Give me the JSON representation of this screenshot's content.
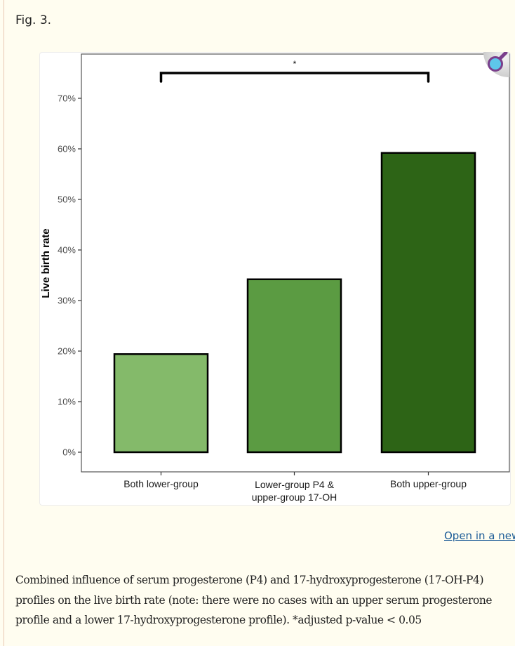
{
  "figure": {
    "label": "Fig. 3.",
    "open_link": "Open in a new",
    "caption": "Combined influence of serum progesterone (P4) and 17-hydroxyprogesterone (17-OH-P4) profiles on the live birth rate (note: there were no cases with an upper serum progesterone profile and a lower 17-hydroxyprogesterone profile). *adjusted p-value < 0.05",
    "zoom_icon": "magnifier-icon"
  },
  "chart_data": {
    "type": "bar",
    "title": "",
    "xlabel": "",
    "ylabel": "Live birth rate",
    "categories": [
      "Both lower-group",
      "Lower-group P4 &\nupper-group 17-OH",
      "Both upper-group"
    ],
    "values": [
      19.4,
      34.2,
      59.2
    ],
    "value_unit": "%",
    "colors": [
      "#84ba6a",
      "#5b9b42",
      "#2d6416"
    ],
    "ylim": [
      0,
      75
    ],
    "yticks": [
      0,
      10,
      20,
      30,
      40,
      50,
      60,
      70
    ],
    "ytick_labels": [
      "0%",
      "10%",
      "20%",
      "30%",
      "40%",
      "50%",
      "60%",
      "70%"
    ],
    "grid": false,
    "annotations": [
      {
        "type": "significance-bracket",
        "from": "Both lower-group",
        "to": "Both upper-group",
        "y": 75,
        "label": "*"
      }
    ]
  }
}
